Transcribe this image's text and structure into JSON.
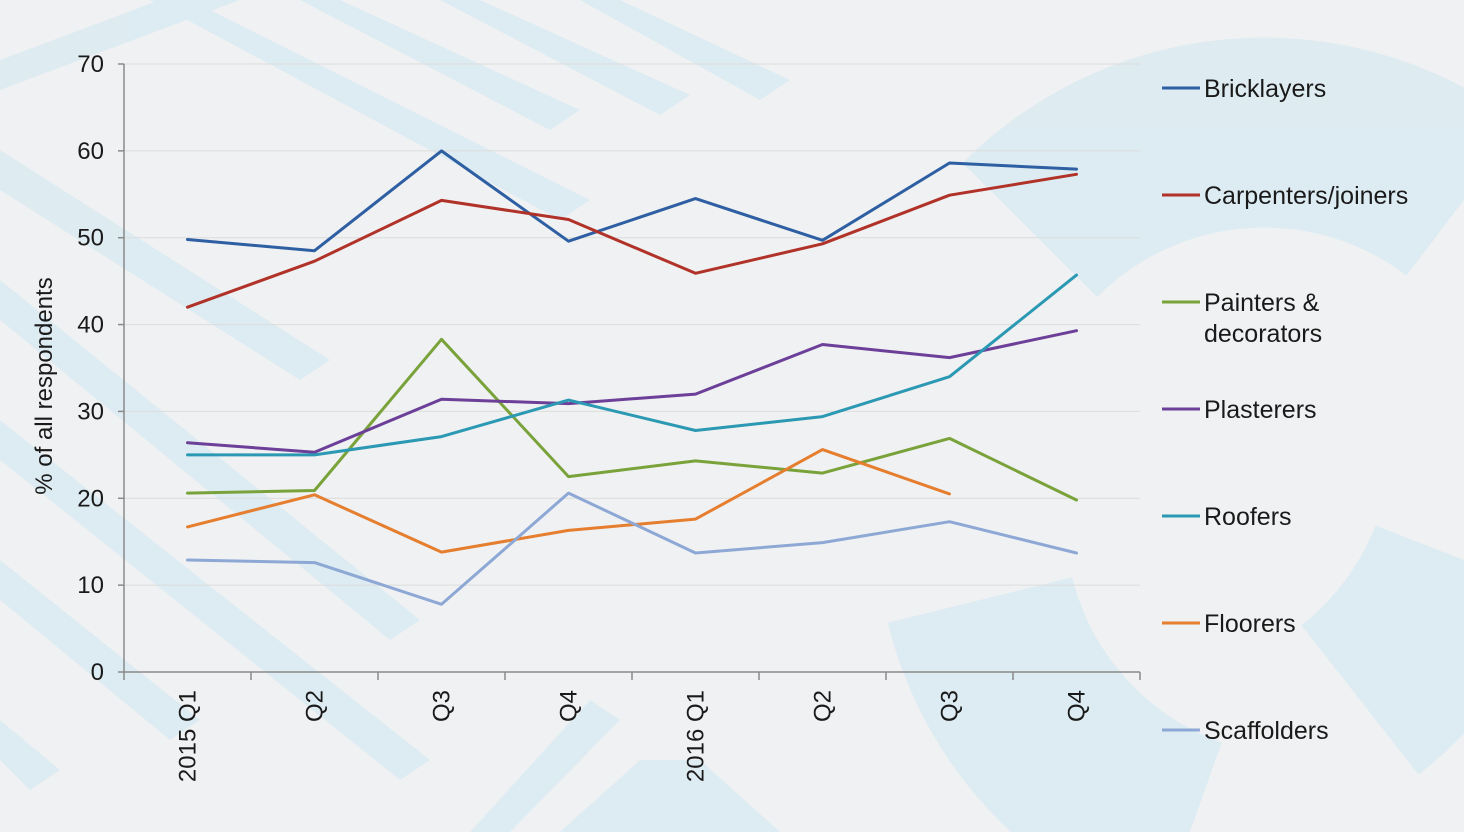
{
  "colors": {
    "background": "#f0f1f2",
    "decor": "#cfe8f2",
    "axis": "#8a8a8a",
    "grid": "#dcdcdc"
  },
  "chart_data": {
    "type": "line",
    "title": "",
    "xlabel": "",
    "ylabel": "% of all respondents",
    "ylim": [
      0,
      70
    ],
    "yticks": [
      0,
      10,
      20,
      30,
      40,
      50,
      60,
      70
    ],
    "grid": true,
    "legend_position": "right",
    "categories": [
      "2015 Q1",
      "Q2",
      "Q3",
      "Q4",
      "2016 Q1",
      "Q2",
      "Q3",
      "Q4"
    ],
    "series": [
      {
        "name": "Bricklayers",
        "color": "#2e5fa3",
        "values": [
          49.8,
          48.5,
          60.0,
          49.6,
          54.5,
          49.7,
          58.6,
          57.9
        ]
      },
      {
        "name": "Carpenters/joiners",
        "color": "#b03228",
        "values": [
          42.0,
          47.3,
          54.3,
          52.1,
          45.9,
          49.3,
          54.9,
          57.3
        ]
      },
      {
        "name": "Painters & decorators",
        "color": "#79a33a",
        "values": [
          20.6,
          20.9,
          38.3,
          22.5,
          24.3,
          22.9,
          26.9,
          19.8
        ]
      },
      {
        "name": "Plasterers",
        "color": "#6c3f99",
        "values": [
          26.4,
          25.3,
          31.4,
          30.9,
          32.0,
          37.7,
          36.2,
          39.3
        ]
      },
      {
        "name": "Roofers",
        "color": "#2b99b3",
        "values": [
          25.0,
          25.0,
          27.1,
          31.3,
          27.8,
          29.4,
          34.0,
          45.7
        ]
      },
      {
        "name": "Floorers",
        "color": "#e57e2e",
        "values": [
          16.7,
          20.4,
          13.8,
          16.3,
          17.6,
          25.6,
          20.5,
          null
        ]
      },
      {
        "name": "Scaffolders",
        "color": "#8ea8d6",
        "values": [
          12.9,
          12.6,
          7.8,
          20.6,
          13.7,
          14.9,
          17.3,
          13.7
        ]
      }
    ]
  }
}
